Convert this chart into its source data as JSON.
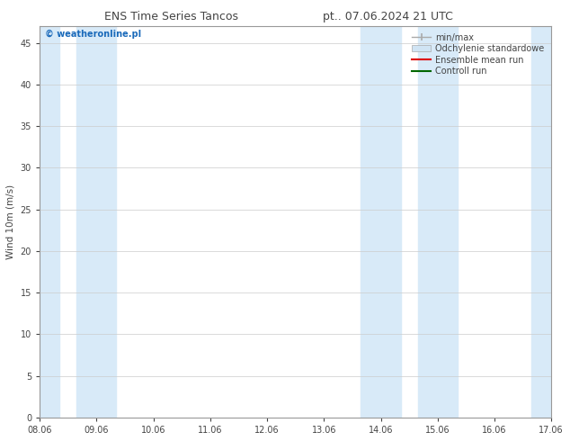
{
  "title_left": "ENS Time Series Tancos",
  "title_right": "pt.. 07.06.2024 21 UTC",
  "ylabel": "Wind 10m (m/s)",
  "xlim_labels": [
    "08.06",
    "09.06",
    "10.06",
    "11.06",
    "12.06",
    "13.06",
    "14.06",
    "15.06",
    "16.06",
    "17.06"
  ],
  "ylim": [
    0,
    47
  ],
  "yticks": [
    0,
    5,
    10,
    15,
    20,
    25,
    30,
    35,
    40,
    45
  ],
  "bg_color": "#ffffff",
  "plot_bg_color": "#ffffff",
  "shaded_color": "#d8eaf8",
  "shaded_ranges": [
    [
      0.0,
      0.35
    ],
    [
      0.65,
      1.35
    ],
    [
      5.65,
      6.35
    ],
    [
      6.65,
      7.35
    ],
    [
      8.65,
      9.0
    ]
  ],
  "watermark_text": "© weatheronline.pl",
  "watermark_color": "#1a6aba",
  "grid_color": "#cccccc",
  "font_color": "#444444",
  "title_fontsize": 9,
  "axis_fontsize": 7,
  "legend_fontsize": 7
}
